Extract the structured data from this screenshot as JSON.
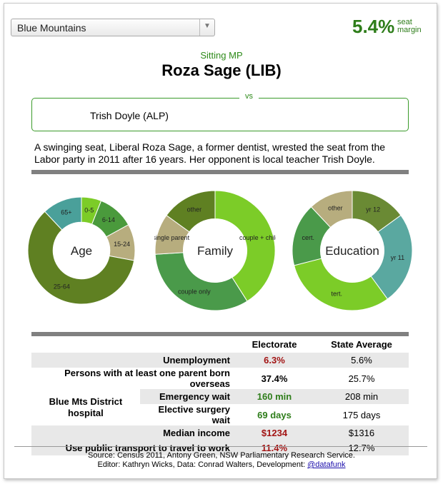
{
  "electorate_select": {
    "value": "Blue Mountains"
  },
  "margin": {
    "value": "5.4%",
    "label_line1": "seat",
    "label_line2": "margin"
  },
  "sitting": {
    "label": "Sitting MP",
    "name": "Roza Sage (LIB)"
  },
  "challenger": {
    "vs_label": "vs",
    "name": "Trish Doyle (ALP)"
  },
  "blurb": "A swinging seat, Liberal Roza Sage, a former dentist, wrested the seat from the Labor party in 2011 after 16 years. Her opponent is local teacher Trish Doyle.",
  "colors": {
    "accent": "#2e7d1a",
    "red": "#a31515"
  },
  "chart_data": [
    {
      "type": "pie",
      "title": "Age",
      "categories": [
        "0-5",
        "6-14",
        "15-24",
        "25-64",
        "65+"
      ],
      "values": [
        6,
        11,
        11,
        60,
        12
      ],
      "colors": [
        "#7ccc28",
        "#4a9a3c",
        "#b7ad7e",
        "#5f8022",
        "#4aa09a"
      ]
    },
    {
      "type": "pie",
      "title": "Family",
      "categories": [
        "couple + child",
        "couple only",
        "single parent",
        "other"
      ],
      "values": [
        41,
        33,
        11,
        15
      ],
      "colors": [
        "#7ccc28",
        "#4a9a4a",
        "#b7ad7e",
        "#5f8022"
      ]
    },
    {
      "type": "pie",
      "title": "Education",
      "categories": [
        "yr 12",
        "yr 11",
        "tert.",
        "cert.",
        "other"
      ],
      "values": [
        15,
        25,
        31,
        17,
        12
      ],
      "colors": [
        "#6a8a34",
        "#5aa8a0",
        "#7ccc28",
        "#4a9a4a",
        "#b7ad7e"
      ]
    }
  ],
  "stats": {
    "headers": {
      "electorate": "Electorate",
      "state": "State Average"
    },
    "rows": [
      {
        "label": "Unemployment",
        "electorate": "6.3%",
        "state": "5.6%"
      },
      {
        "label": "Persons with at least one parent born overseas",
        "electorate": "37.4%",
        "state": "25.7%"
      },
      {
        "group": "Blue Mts District hospital",
        "label": "Emergency wait",
        "electorate": "160 min",
        "state": "208 min"
      },
      {
        "label": "Elective surgery wait",
        "electorate": "69 days",
        "state": "175 days"
      },
      {
        "label": "Median income",
        "electorate": "$1234",
        "state": "$1316"
      },
      {
        "label": "Use public transport to travel to work",
        "electorate": "11.4%",
        "state": "12.7%"
      }
    ]
  },
  "footer": {
    "line1": "Source: Census 2011, Antony Green, NSW Parliamentary Research Service.",
    "line2_prefix": "Editor: Kathryn Wicks, Data: Conrad Walters, Development:",
    "link": "@datafunk"
  }
}
